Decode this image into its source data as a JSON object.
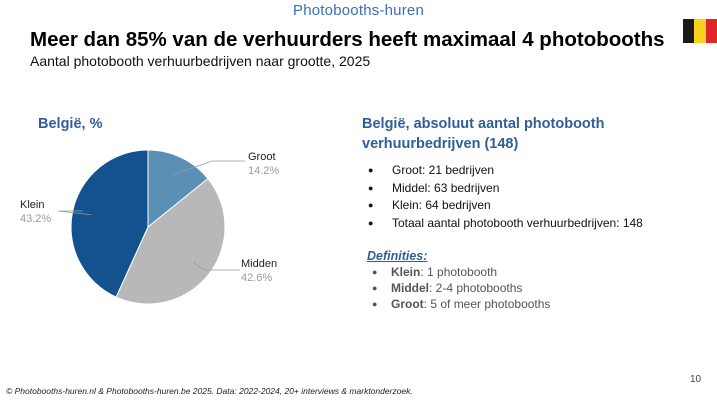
{
  "brand": "Photobooths-huren",
  "flag": {
    "colors": [
      "#1a1a1a",
      "#f7d21e",
      "#e0262d"
    ]
  },
  "title": "Meer dan 85% van de verhuurders heeft maximaal 4 photobooths",
  "subtitle": "Aantal photobooth verhuurbedrijven naar grootte, 2025",
  "chart_data": {
    "type": "pie",
    "title": "België, %",
    "categories": [
      "Groot",
      "Midden",
      "Klein"
    ],
    "values": [
      14.2,
      42.6,
      43.2
    ],
    "value_labels": [
      "14.2%",
      "42.6%",
      "43.2%"
    ],
    "colors": [
      "#5b8fb3",
      "#b8b8b8",
      "#13528f"
    ],
    "start_angle_deg": 0,
    "direction": "clockwise"
  },
  "right_panel": {
    "title": "België, absoluut aantal photobooth verhuurbedrijven (148)",
    "facts": [
      "Groot: 21 bedrijven",
      "Middel: 63 bedrijven",
      "Klein: 64 bedrijven",
      "Totaal aantal photobooth verhuurbedrijven: 148"
    ],
    "definitions_title": "Definities:",
    "definitions": [
      {
        "term": "Klein",
        "text": ": 1 photobooth"
      },
      {
        "term": "Middel",
        "text": ": 2-4 photobooths"
      },
      {
        "term": "Groot",
        "text": ": 5 of meer photobooths"
      }
    ]
  },
  "page_number": "10",
  "footer": "© Photobooths-huren.nl & Photobooths-huren.be 2025. Data: 2022-2024, 20+ interviews & marktonderzoek."
}
